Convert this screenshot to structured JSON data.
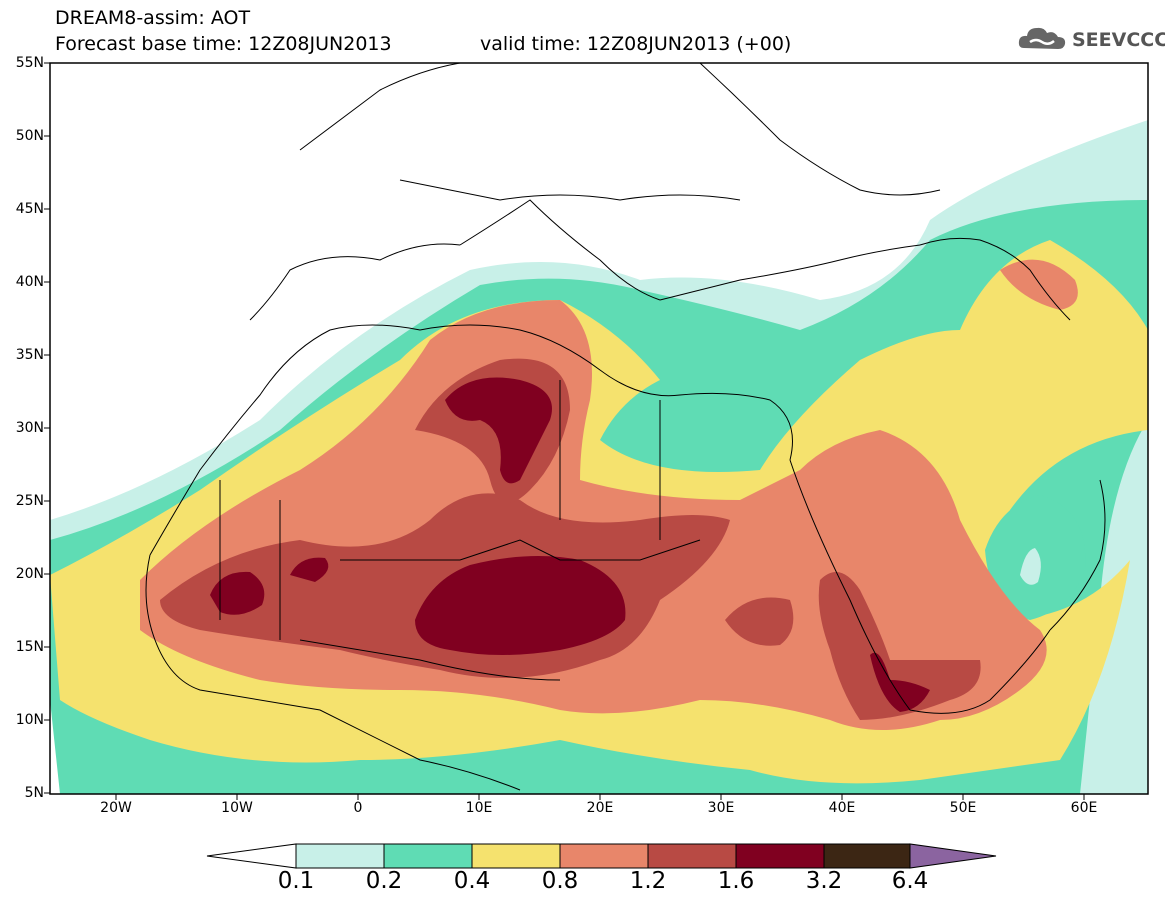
{
  "title_line1": "DREAM8-assim: AOT",
  "title_base": "Forecast base time: 12Z08JUN2013",
  "title_valid": "valid time: 12Z08JUN2013 (+00)",
  "logo_text": "SEEVCCC",
  "y_labels": [
    "55N",
    "50N",
    "45N",
    "40N",
    "35N",
    "30N",
    "25N",
    "20N",
    "15N",
    "10N",
    "5N"
  ],
  "x_labels": [
    "20W",
    "10W",
    "0",
    "10E",
    "20E",
    "30E",
    "40E",
    "50E",
    "60E"
  ],
  "colorbar": {
    "levels": [
      "0.1",
      "0.2",
      "0.4",
      "0.8",
      "1.2",
      "1.6",
      "3.2",
      "6.4"
    ],
    "colors": [
      "#ffffff",
      "#c8f0e8",
      "#5fdcb4",
      "#f5e26e",
      "#e8866a",
      "#b84a44",
      "#800020",
      "#3c2614",
      "#8b64a0"
    ]
  }
}
